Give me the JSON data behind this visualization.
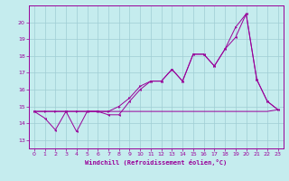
{
  "xlabel": "Windchill (Refroidissement éolien,°C)",
  "bg_color": "#c5ecee",
  "grid_color": "#9fcdd4",
  "line_color": "#990099",
  "xlim": [
    -0.5,
    23.5
  ],
  "ylim": [
    12.5,
    21.0
  ],
  "yticks": [
    13,
    14,
    15,
    16,
    17,
    18,
    19,
    20
  ],
  "xticks": [
    0,
    1,
    2,
    3,
    4,
    5,
    6,
    7,
    8,
    9,
    10,
    11,
    12,
    13,
    14,
    15,
    16,
    17,
    18,
    19,
    20,
    21,
    22,
    23
  ],
  "series_flat_x": [
    0,
    1,
    2,
    3,
    4,
    5,
    6,
    7,
    8,
    9,
    10,
    11,
    12,
    13,
    14,
    15,
    16,
    17,
    18,
    19,
    20,
    21,
    22,
    23
  ],
  "series_flat_y": [
    14.7,
    14.7,
    14.7,
    14.7,
    14.7,
    14.7,
    14.7,
    14.7,
    14.7,
    14.7,
    14.7,
    14.7,
    14.7,
    14.7,
    14.7,
    14.7,
    14.7,
    14.7,
    14.7,
    14.7,
    14.7,
    14.7,
    14.7,
    14.8
  ],
  "series_zigzag_x": [
    0,
    1,
    2,
    3,
    4,
    5,
    6,
    7,
    8,
    9,
    10,
    11,
    12,
    13,
    14,
    15,
    16,
    17,
    18,
    19,
    20,
    21,
    22,
    23
  ],
  "series_zigzag_y": [
    14.7,
    14.3,
    13.6,
    14.7,
    13.5,
    14.7,
    14.7,
    14.5,
    14.5,
    15.3,
    16.0,
    16.5,
    16.5,
    17.2,
    16.5,
    18.1,
    18.1,
    17.4,
    18.4,
    19.1,
    20.5,
    16.6,
    15.3,
    14.8
  ],
  "series_smooth_x": [
    0,
    1,
    2,
    3,
    4,
    5,
    6,
    7,
    8,
    9,
    10,
    11,
    12,
    13,
    14,
    15,
    16,
    17,
    18,
    19,
    20,
    21,
    22,
    23
  ],
  "series_smooth_y": [
    14.7,
    14.7,
    14.7,
    14.7,
    14.7,
    14.7,
    14.7,
    14.7,
    15.0,
    15.5,
    16.2,
    16.5,
    16.5,
    17.2,
    16.5,
    18.1,
    18.1,
    17.4,
    18.4,
    19.7,
    20.5,
    16.6,
    15.3,
    14.8
  ]
}
